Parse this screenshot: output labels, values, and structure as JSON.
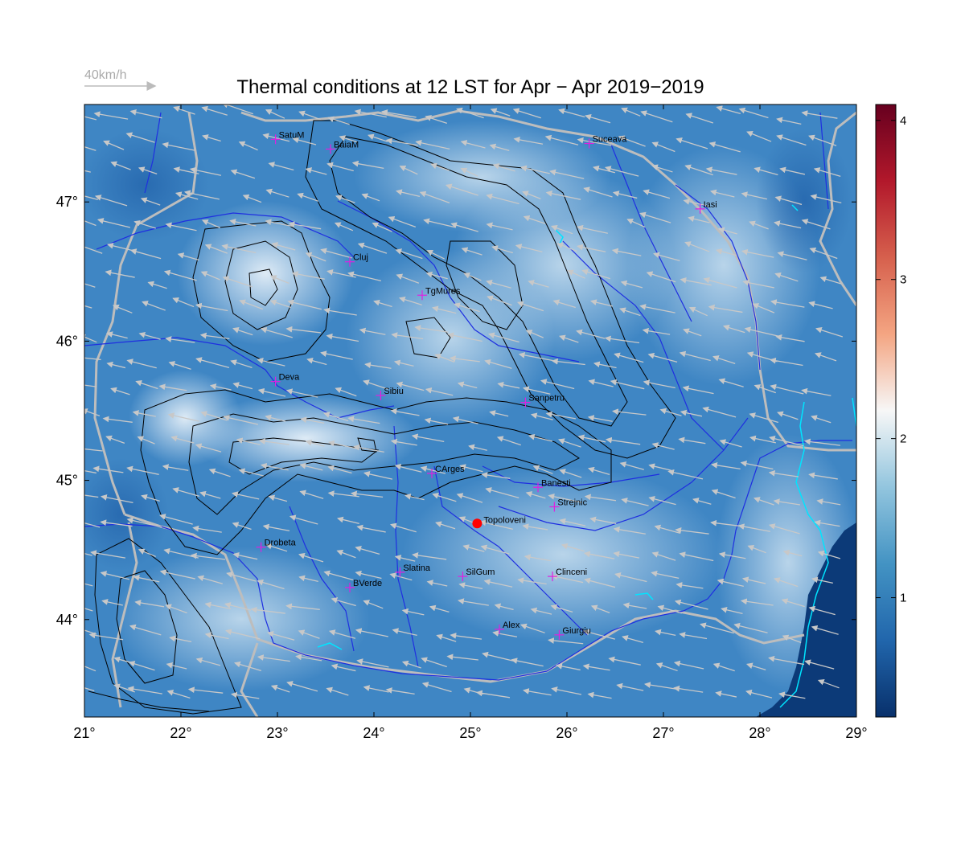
{
  "title": "Thermal conditions at 12 LST for Apr − Apr  2019−2019",
  "wind_reference": {
    "label": "40km/h",
    "color": "#bbbbbb"
  },
  "axes": {
    "lon_range": [
      21,
      29
    ],
    "lat_range": [
      43.3,
      47.7
    ],
    "x_ticks": [
      {
        "value": 21,
        "label": "21°"
      },
      {
        "value": 22,
        "label": "22°"
      },
      {
        "value": 23,
        "label": "23°"
      },
      {
        "value": 24,
        "label": "24°"
      },
      {
        "value": 25,
        "label": "25°"
      },
      {
        "value": 26,
        "label": "26°"
      },
      {
        "value": 27,
        "label": "27°"
      },
      {
        "value": 28,
        "label": "28°"
      },
      {
        "value": 29,
        "label": "29°"
      }
    ],
    "y_ticks": [
      {
        "value": 44,
        "label": "44°"
      },
      {
        "value": 45,
        "label": "45°"
      },
      {
        "value": 46,
        "label": "46°"
      },
      {
        "value": 47,
        "label": "47°"
      }
    ]
  },
  "colorbar": {
    "range": [
      0.25,
      4.1
    ],
    "ticks": [
      {
        "value": 1,
        "label": "1"
      },
      {
        "value": 2,
        "label": "2"
      },
      {
        "value": 3,
        "label": "3"
      },
      {
        "value": 4,
        "label": "4"
      }
    ],
    "colors": [
      "#08306b",
      "#2166ac",
      "#4393c3",
      "#92c5de",
      "#f7f7f7",
      "#f4a582",
      "#d6604d",
      "#b2182b",
      "#67001f"
    ]
  },
  "colors": {
    "field_base": "#3f86c4",
    "river": "#1f2fe0",
    "border": "#bdbdbd",
    "contour": "#000000",
    "city_marker": "#e020e0",
    "highlight": "#ff0000",
    "wind_arrow": "#c8c8c8",
    "lake": "#00e5ff"
  },
  "cities": [
    {
      "name": "SatuM",
      "lon": 22.98,
      "lat": 47.45
    },
    {
      "name": "BaiaM",
      "lon": 23.55,
      "lat": 47.38
    },
    {
      "name": "Suceava",
      "lon": 26.23,
      "lat": 47.42
    },
    {
      "name": "Iasi",
      "lon": 27.38,
      "lat": 46.95
    },
    {
      "name": "Cluj",
      "lon": 23.75,
      "lat": 46.57
    },
    {
      "name": "TgMures",
      "lon": 24.5,
      "lat": 46.33
    },
    {
      "name": "Deva",
      "lon": 22.98,
      "lat": 45.71
    },
    {
      "name": "Sibiu",
      "lon": 24.07,
      "lat": 45.61
    },
    {
      "name": "Sanpetru",
      "lon": 25.57,
      "lat": 45.56
    },
    {
      "name": "CArges",
      "lon": 24.6,
      "lat": 45.05
    },
    {
      "name": "Banesti",
      "lon": 25.7,
      "lat": 44.95
    },
    {
      "name": "Strejnic",
      "lon": 25.87,
      "lat": 44.81
    },
    {
      "name": "Drobeta",
      "lon": 22.83,
      "lat": 44.52
    },
    {
      "name": "Slatina",
      "lon": 24.27,
      "lat": 44.34
    },
    {
      "name": "SilGum",
      "lon": 24.92,
      "lat": 44.31
    },
    {
      "name": "Clinceni",
      "lon": 25.85,
      "lat": 44.31
    },
    {
      "name": "BVerde",
      "lon": 23.75,
      "lat": 44.23
    },
    {
      "name": "Alex",
      "lon": 25.3,
      "lat": 43.93
    },
    {
      "name": "Giurgiu",
      "lon": 25.92,
      "lat": 43.89
    }
  ],
  "highlight_station": {
    "name": "Topoloveni",
    "lon": 25.07,
    "lat": 44.69
  }
}
